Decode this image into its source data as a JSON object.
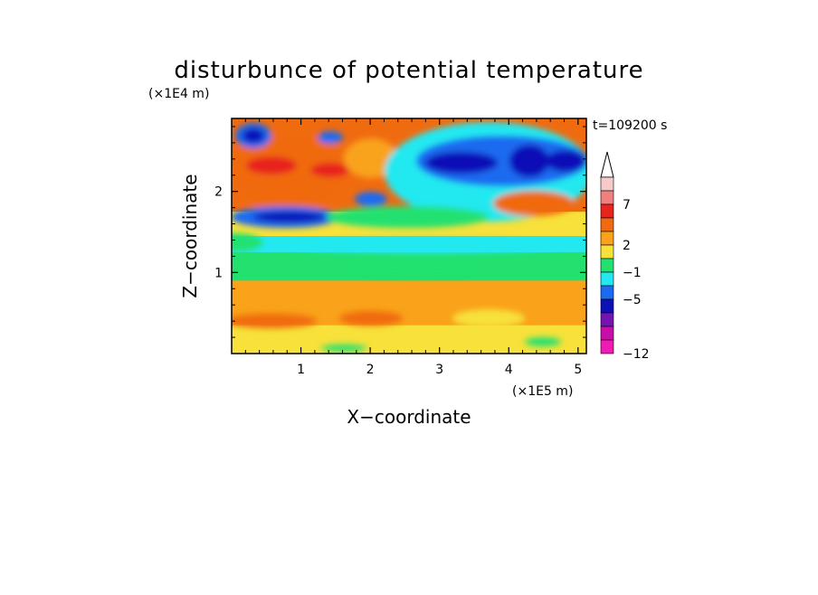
{
  "chart_data": {
    "type": "heatmap",
    "title": "disturbunce of potential temperature",
    "time_label": "t=109200 s",
    "xlabel": "X−coordinate",
    "ylabel": "Z−coordinate",
    "x_unit": "(×1E5 m)",
    "y_unit": "(×1E4 m)",
    "xlim": [
      0,
      5.12
    ],
    "ylim": [
      0,
      2.9
    ],
    "x_ticks": [
      1,
      2,
      3,
      4,
      5
    ],
    "y_ticks": [
      1,
      2
    ],
    "x_tick_labels": [
      "1",
      "2",
      "3",
      "4",
      "5"
    ],
    "y_tick_labels": [
      "1",
      "2"
    ],
    "colorbar": {
      "tick_labels": [
        "7",
        "2",
        "−1",
        "−5",
        "−12"
      ],
      "colors_top_to_bottom": [
        "#f7c9c9",
        "#f07f7f",
        "#e8241d",
        "#f06b10",
        "#f9a21a",
        "#f7e13a",
        "#22e16f",
        "#24e8f0",
        "#1b6bf0",
        "#0d0fb7",
        "#7613b5",
        "#c80dab",
        "#f01bb2"
      ],
      "extend": "max"
    },
    "color_levels": [
      "#f01bb2",
      "#c80dab",
      "#7613b5",
      "#0d0fb7",
      "#1b6bf0",
      "#24e8f0",
      "#22e16f",
      "#f7e13a",
      "#f9a21a",
      "#f06b10",
      "#e8241d",
      "#f07f7f",
      "#f7c9c9"
    ],
    "field_bands": [
      {
        "z_range": [
          0.0,
          0.35
        ],
        "color": "#f7e13a"
      },
      {
        "z_range": [
          0.35,
          0.9
        ],
        "color": "#f9a21a"
      },
      {
        "z_range": [
          0.9,
          1.25
        ],
        "color": "#22e16f"
      },
      {
        "z_range": [
          1.25,
          1.45
        ],
        "color": "#24e8f0"
      },
      {
        "z_range": [
          1.45,
          1.75
        ],
        "color": "#f7e13a"
      },
      {
        "z_range": [
          1.75,
          2.9
        ],
        "color": "#f06b10"
      }
    ]
  }
}
